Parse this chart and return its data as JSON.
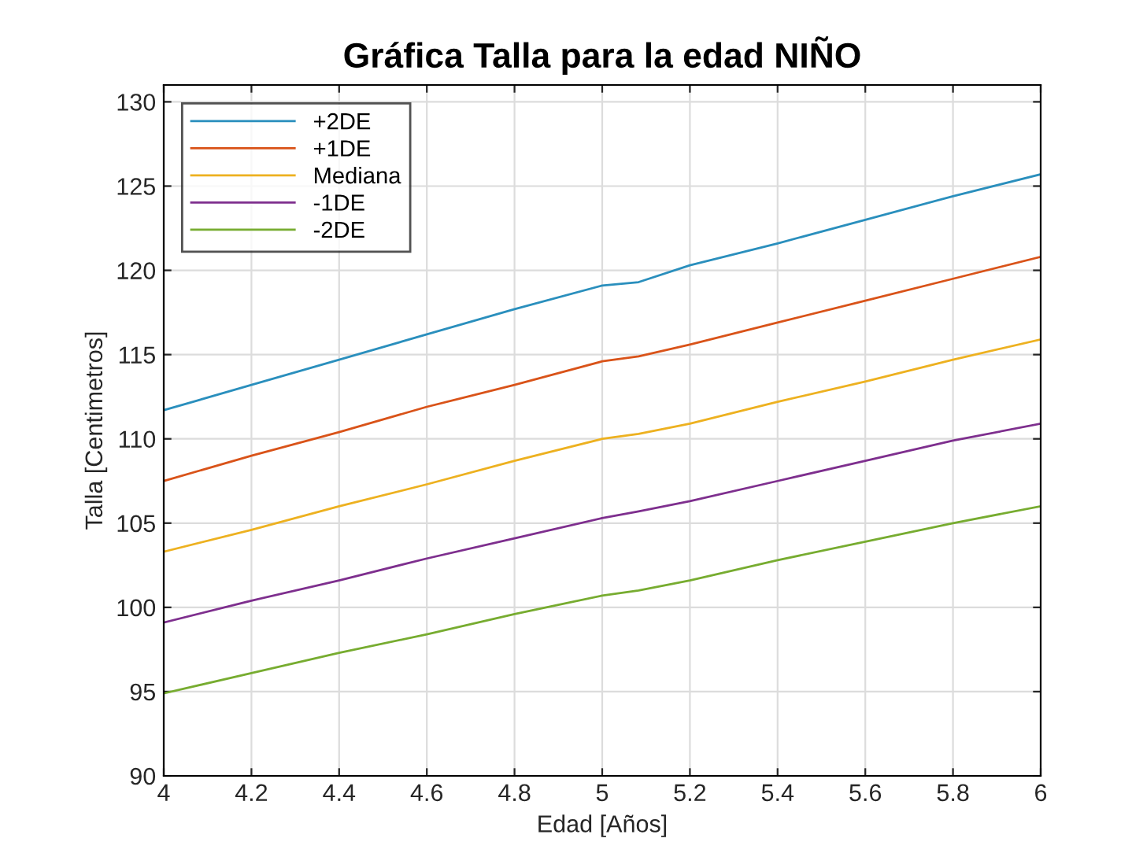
{
  "chart_data": {
    "type": "line",
    "title": "Gráfica Talla para la edad NIÑO",
    "xlabel": "Edad [Años]",
    "ylabel": "Talla [Centimetros]",
    "x": [
      4,
      4.2,
      4.4,
      4.6,
      4.8,
      5,
      5.083,
      5.2,
      5.4,
      5.6,
      5.8,
      6
    ],
    "series": [
      {
        "name": "+2DE",
        "color": "#2a8fbd",
        "values": [
          111.7,
          113.2,
          114.7,
          116.2,
          117.7,
          119.1,
          119.3,
          120.3,
          121.6,
          123.0,
          124.4,
          125.7
        ]
      },
      {
        "name": "+1DE",
        "color": "#d95319",
        "values": [
          107.5,
          109.0,
          110.4,
          111.9,
          113.2,
          114.6,
          114.9,
          115.6,
          116.9,
          118.2,
          119.5,
          120.8
        ]
      },
      {
        "name": "Mediana",
        "color": "#edb120",
        "values": [
          103.3,
          104.6,
          106.0,
          107.3,
          108.7,
          110.0,
          110.3,
          110.9,
          112.2,
          113.4,
          114.7,
          115.9
        ]
      },
      {
        "name": "-1DE",
        "color": "#7e2f8e",
        "values": [
          99.1,
          100.4,
          101.6,
          102.9,
          104.1,
          105.3,
          105.7,
          106.3,
          107.5,
          108.7,
          109.9,
          110.9
        ]
      },
      {
        "name": "-2DE",
        "color": "#77ac30",
        "values": [
          94.9,
          96.1,
          97.3,
          98.4,
          99.6,
          100.7,
          101.0,
          101.6,
          102.8,
          103.9,
          105.0,
          106.0
        ]
      }
    ],
    "xlim": [
      4,
      6
    ],
    "xticks": [
      4,
      4.2,
      4.4,
      4.6,
      4.8,
      5,
      5.2,
      5.4,
      5.6,
      5.8,
      6
    ],
    "ylim": [
      90,
      131
    ],
    "yticks": [
      90,
      95,
      100,
      105,
      110,
      115,
      120,
      125,
      130
    ],
    "grid": true,
    "legend": "top left",
    "marker": "none",
    "line_style": "solid"
  }
}
